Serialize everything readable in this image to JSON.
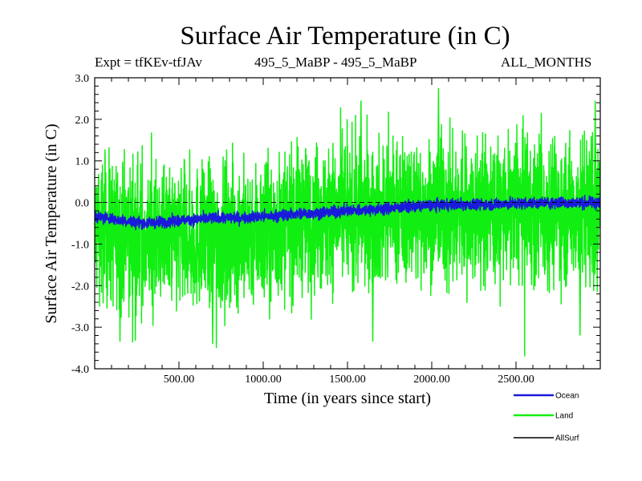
{
  "header": {
    "title": "Surface Air Temperature (in C)",
    "expt": "Expt = tfKEv-tfJAv",
    "comparison": "495_5_MaBP - 495_5_MaBP",
    "months": "ALL_MONTHS"
  },
  "chart_data": {
    "type": "line",
    "title": "Surface Air Temperature (in C)",
    "xlabel": "Time (in years since start)",
    "ylabel": "Surface Air Temperature (in C)",
    "xlim": [
      0,
      3000
    ],
    "ylim": [
      -4.0,
      3.0
    ],
    "x_ticks": [
      500,
      1000,
      1500,
      2000,
      2500
    ],
    "x_tick_labels": [
      "500.00",
      "1000.00",
      "1500.00",
      "2000.00",
      "2500.00"
    ],
    "y_ticks": [
      3.0,
      2.0,
      1.0,
      0.0,
      -1.0,
      -2.0,
      -3.0,
      -4.0
    ],
    "y_tick_labels": [
      "3.0",
      "2.0",
      "1.0",
      "0.0",
      "-1.0",
      "-2.0",
      "-3.0",
      "-4.0"
    ],
    "reference_line": {
      "y": 0.0,
      "style": "dashed"
    },
    "legend_position": "bottom-right, below plot",
    "series": [
      {
        "name": "Ocean",
        "color": "#1a1adb",
        "x": [
          0,
          150,
          300,
          450,
          600,
          750,
          900,
          1050,
          1200,
          1350,
          1500,
          1650,
          1800,
          1950,
          2100,
          2250,
          2400,
          2550,
          2700,
          2850,
          3000
        ],
        "values": [
          -0.33,
          -0.42,
          -0.5,
          -0.45,
          -0.4,
          -0.37,
          -0.36,
          -0.33,
          -0.27,
          -0.25,
          -0.2,
          -0.17,
          -0.12,
          -0.08,
          -0.05,
          -0.05,
          -0.04,
          -0.02,
          -0.01,
          -0.01,
          -0.01
        ],
        "spread": 0.12
      },
      {
        "name": "Land",
        "color": "#11ee11",
        "x": [
          0,
          150,
          300,
          450,
          600,
          750,
          900,
          1050,
          1200,
          1350,
          1500,
          1650,
          1800,
          1950,
          2100,
          2250,
          2400,
          2550,
          2700,
          2850,
          3000
        ],
        "values": [
          -0.65,
          -0.8,
          -0.9,
          -0.9,
          -0.85,
          -0.85,
          -0.75,
          -0.65,
          -0.4,
          -0.35,
          -0.3,
          -0.3,
          -0.2,
          -0.2,
          -0.2,
          -0.2,
          -0.2,
          -0.2,
          -0.15,
          -0.2,
          -0.2
        ],
        "spread": 0.85,
        "extremes": [
          {
            "x": 150,
            "y": -3.35
          },
          {
            "x": 700,
            "y": -3.4
          },
          {
            "x": 1580,
            "y": 2.45
          },
          {
            "x": 1650,
            "y": -3.35
          },
          {
            "x": 2040,
            "y": 2.75
          },
          {
            "x": 2880,
            "y": -3.2
          },
          {
            "x": 2970,
            "y": 2.45
          }
        ]
      },
      {
        "name": "AllSurf",
        "color": "#000000",
        "x": [],
        "values": []
      }
    ]
  }
}
